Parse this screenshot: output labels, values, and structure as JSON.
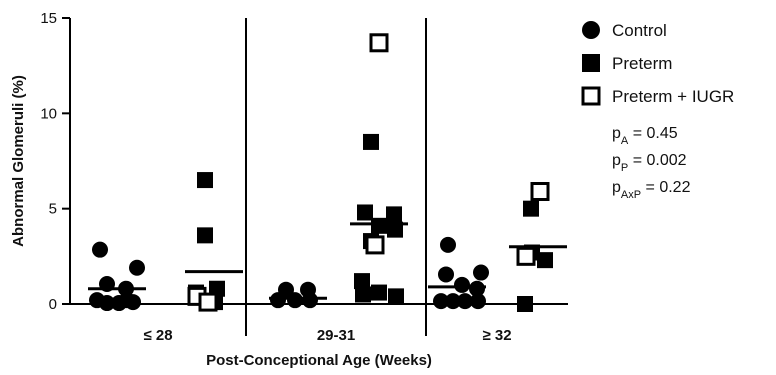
{
  "chart_data": {
    "type": "scatter",
    "title": "",
    "xlabel": "Post-Conceptional Age (Weeks)",
    "ylabel": "Abnormal Glomeruli (%)",
    "ylim": [
      0,
      15
    ],
    "yticks": [
      "0",
      "5",
      "10",
      "15"
    ],
    "categories": [
      "≤ 28",
      "29-31",
      "≥ 32"
    ],
    "legend": [
      {
        "name": "Control",
        "marker": "filled-circle"
      },
      {
        "name": "Preterm",
        "marker": "filled-square"
      },
      {
        "name": "Preterm + IUGR",
        "marker": "open-square"
      }
    ],
    "series": [
      {
        "name": "Control",
        "marker": "filled-circle",
        "group_means": [
          0.8,
          0.3,
          0.9
        ],
        "groups": [
          [
            2.85,
            1.9,
            1.05,
            0.8,
            0.2,
            0.2,
            0.05,
            0.05,
            0.1
          ],
          [
            0.75,
            0.75,
            0.2,
            0.2,
            0.2
          ],
          [
            3.1,
            1.65,
            1.55,
            1.0,
            0.8,
            0.15,
            0.15,
            0.15,
            0.15
          ]
        ]
      },
      {
        "name": "Preterm",
        "marker": "filled-square",
        "group_means": [
          1.7,
          4.2,
          3.0
        ],
        "groups": [
          [
            6.5,
            3.6,
            0.8,
            0.6,
            0.1
          ],
          [
            8.5,
            4.8,
            4.7,
            4.1,
            3.9,
            3.3,
            1.2,
            0.6,
            0.5,
            0.4
          ],
          [
            5.0,
            2.7,
            2.3,
            0.0
          ]
        ]
      },
      {
        "name": "Preterm + IUGR",
        "marker": "open-square",
        "group_means": [
          null,
          null,
          null
        ],
        "groups": [
          [
            0.4,
            0.1
          ],
          [
            13.7,
            3.1
          ],
          [
            5.9,
            2.5
          ]
        ]
      }
    ],
    "stats": [
      {
        "p": "p",
        "sub": "A",
        "rest": " = 0.45"
      },
      {
        "p": "p",
        "sub": "P",
        "rest": " = 0.002"
      },
      {
        "p": "p",
        "sub": "AxP",
        "rest": " = 0.22"
      }
    ],
    "grid": false,
    "legend_position": "right"
  }
}
